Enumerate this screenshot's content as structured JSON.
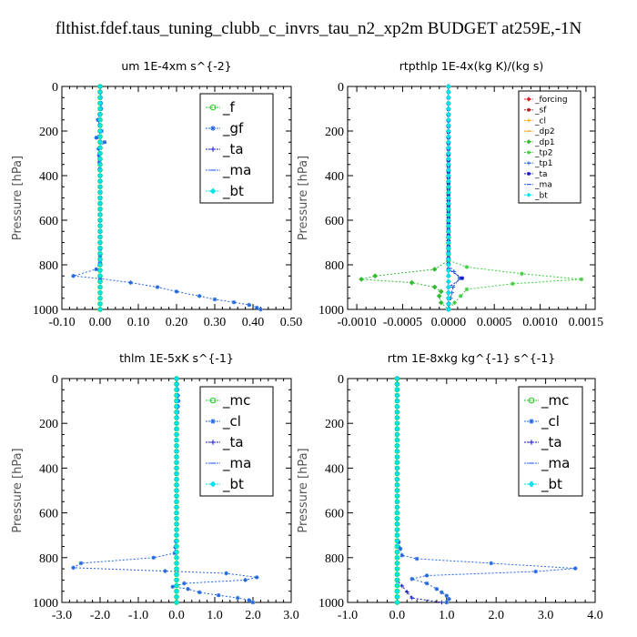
{
  "page_title": "flthist.fdef.taus_tuning_clubb_c_invrs_tau_n2_xp2m  BUDGET at259E,-1N",
  "colors": {
    "f": "#22cc22",
    "gf": "#2266dd",
    "ta": "#1111cc",
    "ma": "#3366ff",
    "bt": "#00e5ee",
    "forcing": "#dd2222",
    "sf": "#bb1111",
    "cl": "#ffaa00",
    "dp2": "#ff9900",
    "dp1": "#33bb33",
    "tp2": "#44cc44",
    "tp1": "#2266dd",
    "mc": "#22cc22",
    "cl2": "#2266dd"
  },
  "chart_data": [
    {
      "type": "line",
      "title": "um   1E-4xm  s^{-2}",
      "ylabel": "Pressure [hPa]",
      "xlim": [
        -0.1,
        0.5
      ],
      "ylim": [
        1000,
        0
      ],
      "xticks": [
        "-0.10",
        "0.00",
        "0.10",
        "0.20",
        "0.30",
        "0.40",
        "0.50"
      ],
      "yticks": [
        "0",
        "200",
        "400",
        "600",
        "800",
        "1000"
      ],
      "legend_position": "top-right",
      "series": [
        {
          "name": "_f",
          "marker": "circle",
          "color_key": "f",
          "points": [
            [
              0.0,
              0
            ],
            [
              0.0,
              100
            ],
            [
              0.0,
              200
            ],
            [
              0.0,
              300
            ],
            [
              0.0,
              400
            ],
            [
              0.0,
              500
            ],
            [
              0.0,
              600
            ],
            [
              0.0,
              700
            ],
            [
              0.0,
              800
            ],
            [
              0.0,
              900
            ],
            [
              0.0,
              1000
            ]
          ]
        },
        {
          "name": "_gf",
          "marker": "star",
          "color_key": "gf",
          "points": [
            [
              0.0,
              0
            ],
            [
              0.003,
              100
            ],
            [
              -0.006,
              150
            ],
            [
              0.004,
              200
            ],
            [
              -0.01,
              230
            ],
            [
              0.012,
              250
            ],
            [
              -0.004,
              280
            ],
            [
              0.0,
              400
            ],
            [
              0.0,
              700
            ],
            [
              0.0,
              790
            ],
            [
              -0.01,
              820
            ],
            [
              -0.07,
              850
            ],
            [
              0.0,
              862
            ],
            [
              0.08,
              880
            ],
            [
              0.15,
              900
            ],
            [
              0.2,
              920
            ],
            [
              0.26,
              940
            ],
            [
              0.3,
              955
            ],
            [
              0.35,
              968
            ],
            [
              0.39,
              980
            ],
            [
              0.41,
              992
            ],
            [
              0.42,
              1000
            ]
          ]
        },
        {
          "name": "_ta",
          "marker": "plus",
          "color_key": "ta",
          "points": [
            [
              0.0,
              0
            ],
            [
              0.0,
              500
            ],
            [
              0.0,
              1000
            ]
          ]
        },
        {
          "name": "_ma",
          "marker": "dash",
          "color_key": "ma",
          "points": [
            [
              0.0,
              0
            ],
            [
              0.0,
              500
            ],
            [
              0.0,
              1000
            ]
          ]
        },
        {
          "name": "_bt",
          "marker": "diamond",
          "color_key": "bt",
          "points": [
            [
              0.0,
              0
            ],
            [
              0.0,
              500
            ],
            [
              0.0,
              1000
            ]
          ]
        }
      ]
    },
    {
      "type": "line",
      "title": "rtpthlp   1E-4x(kg K)/(kg s)",
      "ylabel": "Pressure [hPa]",
      "xlim": [
        -0.0011,
        0.0016
      ],
      "ylim": [
        1000,
        0
      ],
      "xticks": [
        "-0.0010",
        "-0.0005",
        "0.0000",
        "0.0005",
        "0.0010",
        "0.0015"
      ],
      "yticks": [
        "0",
        "200",
        "400",
        "600",
        "800",
        "1000"
      ],
      "legend_position": "top-right",
      "series": [
        {
          "name": "_forcing",
          "marker": "diamond",
          "color_key": "forcing",
          "points": [
            [
              0.0,
              0
            ],
            [
              0.0,
              500
            ],
            [
              0.0,
              1000
            ]
          ]
        },
        {
          "name": "_sf",
          "marker": "star",
          "color_key": "sf",
          "points": [
            [
              0.0,
              0
            ],
            [
              0.0,
              500
            ],
            [
              0.0,
              1000
            ]
          ]
        },
        {
          "name": "_cl",
          "marker": "plus",
          "color_key": "cl",
          "points": [
            [
              0.0,
              0
            ],
            [
              0.0,
              500
            ],
            [
              0.0,
              1000
            ]
          ]
        },
        {
          "name": "_dp2",
          "marker": "dash",
          "color_key": "dp2",
          "points": [
            [
              0.0,
              0
            ],
            [
              0.0,
              500
            ],
            [
              0.0,
              1000
            ]
          ]
        },
        {
          "name": "_dp1",
          "marker": "diamond",
          "color_key": "dp1",
          "points": [
            [
              0.0,
              0
            ],
            [
              0.0,
              780
            ],
            [
              -0.00015,
              820
            ],
            [
              -0.0008,
              850
            ],
            [
              -0.00095,
              865
            ],
            [
              -0.0004,
              880
            ],
            [
              -0.00015,
              900
            ],
            [
              -8e-05,
              920
            ],
            [
              -0.0001,
              940
            ],
            [
              -8e-05,
              970
            ],
            [
              0.0,
              1000
            ]
          ]
        },
        {
          "name": "_tp2",
          "marker": "star",
          "color_key": "tp2",
          "points": [
            [
              0.0,
              0
            ],
            [
              0.0,
              780
            ],
            [
              0.0002,
              810
            ],
            [
              0.0008,
              840
            ],
            [
              0.00145,
              865
            ],
            [
              0.0007,
              885
            ],
            [
              0.0002,
              910
            ],
            [
              0.0,
              1000
            ]
          ]
        },
        {
          "name": "_tp1",
          "marker": "plus",
          "color_key": "tp1",
          "points": [
            [
              0.0,
              0
            ],
            [
              0.0,
              800
            ],
            [
              0.00012,
              860
            ],
            [
              5e-05,
              900
            ],
            [
              0.0,
              1000
            ]
          ]
        },
        {
          "name": "_ta",
          "marker": "star",
          "color_key": "ta",
          "points": [
            [
              0.0,
              0
            ],
            [
              0.0,
              820
            ],
            [
              0.00015,
              860
            ],
            [
              0.0,
              900
            ],
            [
              0.0,
              1000
            ]
          ]
        },
        {
          "name": "_ma",
          "marker": "dash",
          "color_key": "ma",
          "points": [
            [
              0.0,
              0
            ],
            [
              0.0,
              1000
            ]
          ]
        },
        {
          "name": "_bt",
          "marker": "diamond",
          "color_key": "bt",
          "points": [
            [
              0.0,
              0
            ],
            [
              0.0,
              1000
            ]
          ]
        }
      ]
    },
    {
      "type": "line",
      "title": "thlm   1E-5xK  s^{-1}",
      "ylabel": "Pressure [hPa]",
      "xlim": [
        -3.0,
        3.0
      ],
      "ylim": [
        1000,
        0
      ],
      "xticks": [
        "-3.0",
        "-2.0",
        "-1.0",
        "0.0",
        "1.0",
        "2.0",
        "3.0"
      ],
      "yticks": [
        "0",
        "200",
        "400",
        "600",
        "800",
        "1000"
      ],
      "legend_position": "top-right",
      "series": [
        {
          "name": "_mc",
          "marker": "circle",
          "color_key": "mc",
          "points": [
            [
              0.0,
              0
            ],
            [
              0.0,
              200
            ],
            [
              0.0,
              400
            ],
            [
              0.0,
              600
            ],
            [
              0.0,
              800
            ],
            [
              0.0,
              1000
            ]
          ]
        },
        {
          "name": "_cl",
          "marker": "star",
          "color_key": "cl2",
          "points": [
            [
              0.0,
              0
            ],
            [
              0.05,
              100
            ],
            [
              0.0,
              200
            ],
            [
              0.0,
              700
            ],
            [
              -0.05,
              780
            ],
            [
              -0.6,
              800
            ],
            [
              -2.5,
              825
            ],
            [
              -2.7,
              845
            ],
            [
              -0.3,
              860
            ],
            [
              1.3,
              870
            ],
            [
              2.1,
              888
            ],
            [
              1.8,
              900
            ],
            [
              0.2,
              915
            ],
            [
              -0.1,
              930
            ],
            [
              0.3,
              940
            ],
            [
              0.6,
              955
            ],
            [
              1.1,
              968
            ],
            [
              1.6,
              980
            ],
            [
              1.9,
              990
            ],
            [
              2.0,
              1000
            ]
          ]
        },
        {
          "name": "_ta",
          "marker": "plus",
          "color_key": "ta",
          "points": [
            [
              0.0,
              0
            ],
            [
              0.0,
              500
            ],
            [
              0.0,
              1000
            ]
          ]
        },
        {
          "name": "_ma",
          "marker": "dash",
          "color_key": "ma",
          "points": [
            [
              0.0,
              0
            ],
            [
              0.0,
              500
            ],
            [
              0.0,
              1000
            ]
          ]
        },
        {
          "name": "_bt",
          "marker": "diamond",
          "color_key": "bt",
          "points": [
            [
              0.0,
              0
            ],
            [
              0.0,
              500
            ],
            [
              0.0,
              1000
            ]
          ]
        }
      ]
    },
    {
      "type": "line",
      "title": "rtm   1E-8xkg  kg^{-1} s^{-1}",
      "ylabel": "Pressure [hPa]",
      "xlim": [
        -1.0,
        4.0
      ],
      "ylim": [
        1000,
        0
      ],
      "xticks": [
        "-1.0",
        "0.0",
        "1.0",
        "2.0",
        "3.0",
        "4.0"
      ],
      "yticks": [
        "0",
        "200",
        "400",
        "600",
        "800",
        "1000"
      ],
      "legend_position": "top-right",
      "series": [
        {
          "name": "_mc",
          "marker": "circle",
          "color_key": "mc",
          "points": [
            [
              0.0,
              0
            ],
            [
              0.0,
              200
            ],
            [
              0.0,
              400
            ],
            [
              0.0,
              600
            ],
            [
              0.0,
              800
            ],
            [
              0.0,
              1000
            ]
          ]
        },
        {
          "name": "_cl",
          "marker": "star",
          "color_key": "cl2",
          "points": [
            [
              0.0,
              0
            ],
            [
              0.0,
              700
            ],
            [
              0.1,
              790
            ],
            [
              0.4,
              805
            ],
            [
              1.9,
              825
            ],
            [
              3.6,
              848
            ],
            [
              2.8,
              862
            ],
            [
              0.6,
              880
            ],
            [
              0.3,
              895
            ],
            [
              0.6,
              915
            ],
            [
              0.8,
              940
            ],
            [
              0.9,
              955
            ],
            [
              1.0,
              970
            ],
            [
              1.05,
              985
            ],
            [
              1.0,
              1000
            ]
          ]
        },
        {
          "name": "_ta",
          "marker": "plus",
          "color_key": "ta",
          "points": [
            [
              0.0,
              0
            ],
            [
              0.0,
              900
            ],
            [
              0.3,
              980
            ],
            [
              0.9,
              1000
            ]
          ]
        },
        {
          "name": "_ma",
          "marker": "dash",
          "color_key": "ma",
          "points": [
            [
              0.0,
              0
            ],
            [
              0.0,
              500
            ],
            [
              0.0,
              1000
            ]
          ]
        },
        {
          "name": "_bt",
          "marker": "diamond",
          "color_key": "bt",
          "points": [
            [
              0.0,
              0
            ],
            [
              0.0,
              500
            ],
            [
              0.0,
              1000
            ]
          ]
        }
      ]
    }
  ]
}
